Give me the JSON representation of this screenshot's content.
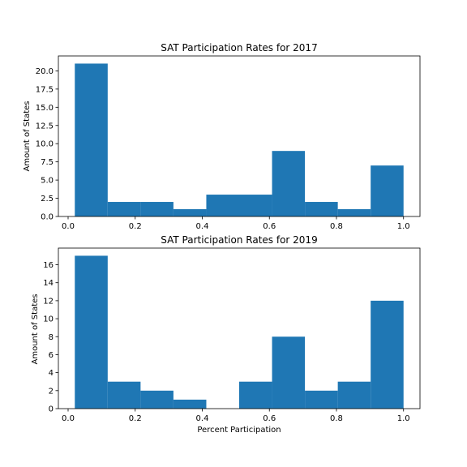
{
  "chart_data": [
    {
      "type": "bar",
      "title": "SAT Participation Rates for 2017",
      "xlabel": "",
      "ylabel": "Amount of States",
      "bar_color": "#1f77b4",
      "bins": [
        [
          0.02,
          0.118
        ],
        [
          0.118,
          0.216
        ],
        [
          0.216,
          0.314
        ],
        [
          0.314,
          0.412
        ],
        [
          0.412,
          0.51
        ],
        [
          0.51,
          0.608
        ],
        [
          0.608,
          0.706
        ],
        [
          0.706,
          0.804
        ],
        [
          0.804,
          0.902
        ],
        [
          0.902,
          1.0
        ]
      ],
      "values": [
        21,
        2,
        2,
        1,
        3,
        3,
        9,
        2,
        1,
        7
      ],
      "xlim": [
        -0.029,
        1.049
      ],
      "ylim": [
        0,
        22.05
      ],
      "x_ticks": [
        "0.0",
        "0.2",
        "0.4",
        "0.6",
        "0.8",
        "1.0"
      ],
      "y_ticks": [
        "0.0",
        "2.5",
        "5.0",
        "7.5",
        "10.0",
        "12.5",
        "15.0",
        "17.5",
        "20.0"
      ],
      "grid": false
    },
    {
      "type": "bar",
      "title": "SAT Participation Rates for 2019",
      "xlabel": "Percent Participation",
      "ylabel": "Amount of States",
      "bar_color": "#1f77b4",
      "bins": [
        [
          0.02,
          0.118
        ],
        [
          0.118,
          0.216
        ],
        [
          0.216,
          0.314
        ],
        [
          0.314,
          0.412
        ],
        [
          0.412,
          0.51
        ],
        [
          0.51,
          0.608
        ],
        [
          0.608,
          0.706
        ],
        [
          0.706,
          0.804
        ],
        [
          0.804,
          0.902
        ],
        [
          0.902,
          1.0
        ]
      ],
      "values": [
        17,
        3,
        2,
        1,
        0,
        3,
        8,
        2,
        3,
        12
      ],
      "xlim": [
        -0.029,
        1.049
      ],
      "ylim": [
        0,
        17.85
      ],
      "x_ticks": [
        "0.0",
        "0.2",
        "0.4",
        "0.6",
        "0.8",
        "1.0"
      ],
      "y_ticks": [
        "0",
        "2",
        "4",
        "6",
        "8",
        "10",
        "12",
        "14",
        "16"
      ],
      "grid": false
    }
  ]
}
